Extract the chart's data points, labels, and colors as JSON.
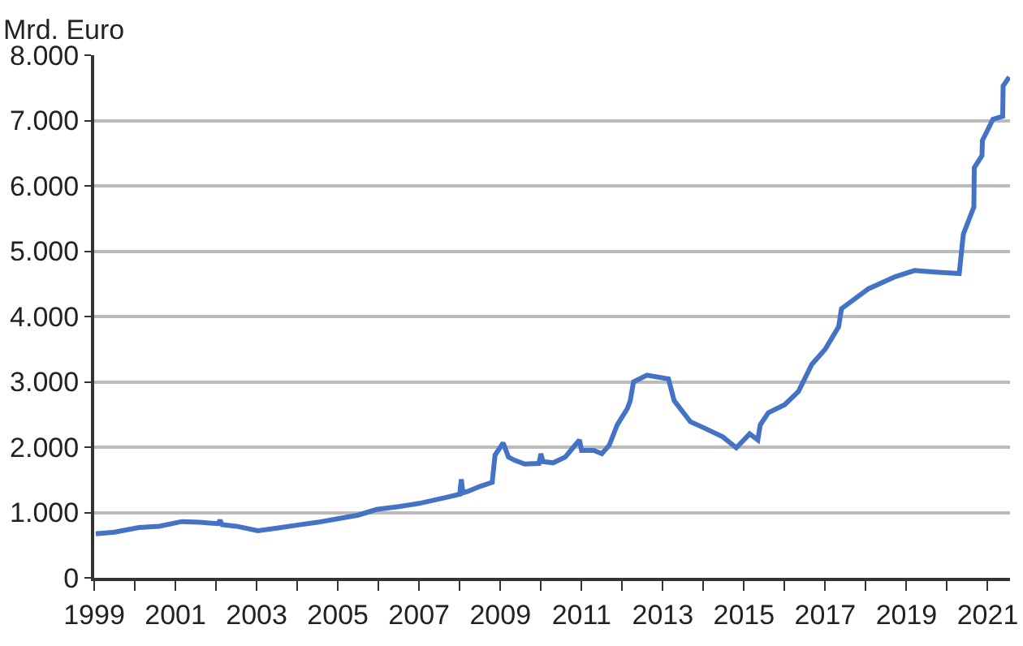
{
  "chart_data": {
    "type": "line",
    "ylabel": "Mrd. Euro",
    "x": [
      1999.04,
      1999.5,
      2000.1,
      2000.6,
      2001.16,
      2001.6,
      2002.05,
      2002.1,
      2002.15,
      2002.5,
      2003.03,
      2003.5,
      2004.09,
      2004.5,
      2005.02,
      2005.5,
      2005.95,
      2006.5,
      2007.0,
      2007.67,
      2008.0,
      2008.04,
      2008.08,
      2008.2,
      2008.5,
      2008.8,
      2008.87,
      2009.07,
      2009.2,
      2009.35,
      2009.6,
      2009.95,
      2010.0,
      2010.05,
      2010.3,
      2010.6,
      2010.8,
      2010.95,
      2011.0,
      2011.3,
      2011.5,
      2011.68,
      2011.88,
      2012.13,
      2012.2,
      2012.28,
      2012.61,
      2013.14,
      2013.28,
      2013.68,
      2014.0,
      2014.48,
      2014.81,
      2015.14,
      2015.34,
      2015.4,
      2015.6,
      2016.0,
      2016.34,
      2016.67,
      2017.0,
      2017.33,
      2017.4,
      2018.07,
      2018.73,
      2019.2,
      2019.7,
      2020.3,
      2020.4,
      2020.55,
      2020.66,
      2020.67,
      2020.86,
      2020.87,
      2021.13,
      2021.37,
      2021.38,
      2021.53
    ],
    "series": [
      {
        "color": "#4472c4",
        "values": [
          675,
          700,
          769,
          790,
          861,
          850,
          830,
          883,
          815,
          790,
          722,
          760,
          815,
          850,
          907,
          960,
          1046,
          1090,
          1139,
          1231,
          1280,
          1509,
          1300,
          1324,
          1400,
          1463,
          1879,
          2065,
          1850,
          1800,
          1741,
          1750,
          1900,
          1780,
          1760,
          1850,
          2000,
          2111,
          1950,
          1950,
          1900,
          2028,
          2342,
          2593,
          2713,
          3000,
          3102,
          3046,
          2713,
          2389,
          2300,
          2157,
          1991,
          2204,
          2111,
          2342,
          2528,
          2650,
          2852,
          3268,
          3500,
          3843,
          4120,
          4426,
          4611,
          4704,
          4680,
          4658,
          5259,
          5500,
          5675,
          6278,
          6463,
          6694,
          7019,
          7065,
          7528,
          7667
        ]
      }
    ],
    "xlim": [
      1999,
      2021.55
    ],
    "xticks": [
      1999,
      {
        "value": 2000,
        "label": null
      },
      2001,
      {
        "value": 2002,
        "label": null
      },
      2003,
      {
        "value": 2004,
        "label": null
      },
      2005,
      {
        "value": 2006,
        "label": null
      },
      2007,
      {
        "value": 2008,
        "label": null
      },
      2009,
      {
        "value": 2010,
        "label": null
      },
      2011,
      {
        "value": 2012,
        "label": null
      },
      2013,
      {
        "value": 2014,
        "label": null
      },
      2015,
      {
        "value": 2016,
        "label": null
      },
      2017,
      {
        "value": 2018,
        "label": null
      },
      2019,
      {
        "value": 2020,
        "label": null
      },
      2021
    ],
    "ylim": [
      0,
      8000
    ],
    "yticks": [
      0,
      {
        "value": 1000,
        "label": "1.000"
      },
      {
        "value": 2000,
        "label": "2.000"
      },
      {
        "value": 3000,
        "label": "3.000"
      },
      {
        "value": 4000,
        "label": "4.000"
      },
      {
        "value": 5000,
        "label": "5.000"
      },
      {
        "value": 6000,
        "label": "6.000"
      },
      {
        "value": 7000,
        "label": "7.000"
      },
      {
        "value": 8000,
        "label": "8.000"
      }
    ],
    "grid": "y",
    "marker": "none",
    "line_style": "solid"
  }
}
